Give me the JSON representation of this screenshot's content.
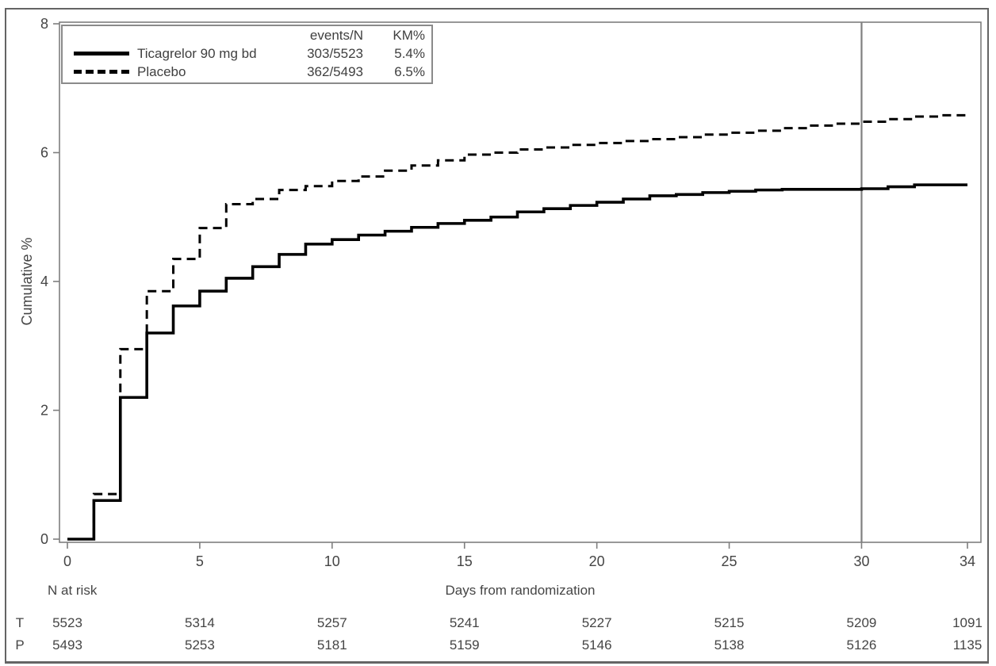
{
  "figure": {
    "legend": {
      "col_events": "events/N",
      "col_km": "KM%",
      "rows": [
        {
          "label": "Ticagrelor 90 mg bd",
          "events": "303/5523",
          "km": "5.4%",
          "style": "solid"
        },
        {
          "label": "Placebo",
          "events": "362/5493",
          "km": "6.5%",
          "style": "dashed"
        }
      ]
    },
    "at_risk": {
      "title": "N at risk",
      "rows": [
        {
          "label": "T",
          "values": [
            "5523",
            "5314",
            "5257",
            "5241",
            "5227",
            "5215",
            "5209",
            "1091"
          ]
        },
        {
          "label": "P",
          "values": [
            "5493",
            "5253",
            "5181",
            "5159",
            "5146",
            "5138",
            "5126",
            "1135"
          ]
        }
      ]
    },
    "colors": {
      "curve": "#000000",
      "frame": "#7f7f7f",
      "reference_line": "#808080",
      "text": "#454545",
      "border": "#646464"
    }
  },
  "chart_data": {
    "type": "line",
    "subtype": "kaplan-meier-step",
    "title": "",
    "xlabel": "Days from randomization",
    "ylabel": "Cumulative %",
    "xlim": [
      0,
      34
    ],
    "ylim": [
      0,
      8
    ],
    "x_ticks": [
      0,
      5,
      10,
      15,
      20,
      25,
      30,
      34
    ],
    "y_ticks": [
      0,
      2,
      4,
      6,
      8
    ],
    "grid": false,
    "legend_position": "top-left",
    "reference_line_x": 30,
    "series": [
      {
        "name": "Ticagrelor 90 mg bd",
        "line": "solid",
        "events_n": "303/5523",
        "km_pct": "5.4%",
        "x": [
          0,
          1,
          2,
          3,
          4,
          5,
          6,
          7,
          8,
          9,
          10,
          11,
          12,
          13,
          14,
          15,
          16,
          17,
          18,
          19,
          20,
          21,
          22,
          23,
          24,
          25,
          26,
          27,
          28,
          29,
          30,
          31,
          32,
          33,
          34
        ],
        "y": [
          0,
          0.6,
          2.2,
          3.2,
          3.62,
          3.85,
          4.05,
          4.23,
          4.42,
          4.58,
          4.65,
          4.72,
          4.78,
          4.84,
          4.9,
          4.95,
          5.0,
          5.08,
          5.13,
          5.18,
          5.23,
          5.28,
          5.33,
          5.35,
          5.38,
          5.4,
          5.42,
          5.43,
          5.43,
          5.43,
          5.44,
          5.47,
          5.5,
          5.5,
          5.5
        ]
      },
      {
        "name": "Placebo",
        "line": "dashed",
        "events_n": "362/5493",
        "km_pct": "6.5%",
        "x": [
          0,
          1,
          2,
          3,
          4,
          5,
          6,
          7,
          8,
          9,
          10,
          11,
          12,
          13,
          14,
          15,
          16,
          17,
          18,
          19,
          20,
          21,
          22,
          23,
          24,
          25,
          26,
          27,
          28,
          29,
          30,
          31,
          32,
          33,
          34
        ],
        "y": [
          0,
          0.7,
          2.95,
          3.85,
          4.35,
          4.83,
          5.2,
          5.28,
          5.42,
          5.48,
          5.56,
          5.63,
          5.72,
          5.8,
          5.88,
          5.97,
          6.0,
          6.05,
          6.08,
          6.12,
          6.15,
          6.18,
          6.21,
          6.24,
          6.28,
          6.31,
          6.34,
          6.38,
          6.42,
          6.45,
          6.48,
          6.52,
          6.56,
          6.58,
          6.6
        ]
      }
    ],
    "at_risk_table": {
      "title": "N at risk",
      "columns_at_x": [
        0,
        5,
        10,
        15,
        20,
        25,
        30,
        34
      ],
      "rows": [
        {
          "label": "T",
          "values": [
            5523,
            5314,
            5257,
            5241,
            5227,
            5215,
            5209,
            1091
          ]
        },
        {
          "label": "P",
          "values": [
            5493,
            5253,
            5181,
            5159,
            5146,
            5138,
            5126,
            1135
          ]
        }
      ]
    }
  }
}
